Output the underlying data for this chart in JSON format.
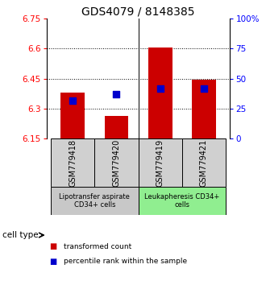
{
  "title": "GDS4079 / 8148385",
  "samples": [
    "GSM779418",
    "GSM779420",
    "GSM779419",
    "GSM779421"
  ],
  "transformed_counts": [
    6.38,
    6.265,
    6.605,
    6.445
  ],
  "percentile_ranks_pct": [
    32,
    37,
    42,
    42
  ],
  "ylim": [
    6.15,
    6.75
  ],
  "yticks": [
    6.15,
    6.3,
    6.45,
    6.6,
    6.75
  ],
  "right_yticks": [
    0,
    25,
    50,
    75,
    100
  ],
  "right_ylim": [
    0,
    100
  ],
  "bar_color": "#cc0000",
  "dot_color": "#0000cc",
  "bar_width": 0.55,
  "dot_size": 30,
  "group_colors": [
    "#c8c8c8",
    "#90ee90"
  ],
  "group_labels": [
    "Lipotransfer aspirate\nCD34+ cells",
    "Leukapheresis CD34+\ncells"
  ],
  "cell_type_label": "cell type",
  "legend_red": "transformed count",
  "legend_blue": "percentile rank within the sample",
  "background_color": "#ffffff",
  "title_fontsize": 10,
  "tick_fontsize": 7.5,
  "sample_fontsize": 7,
  "group_fontsize": 6,
  "legend_fontsize": 6.5
}
